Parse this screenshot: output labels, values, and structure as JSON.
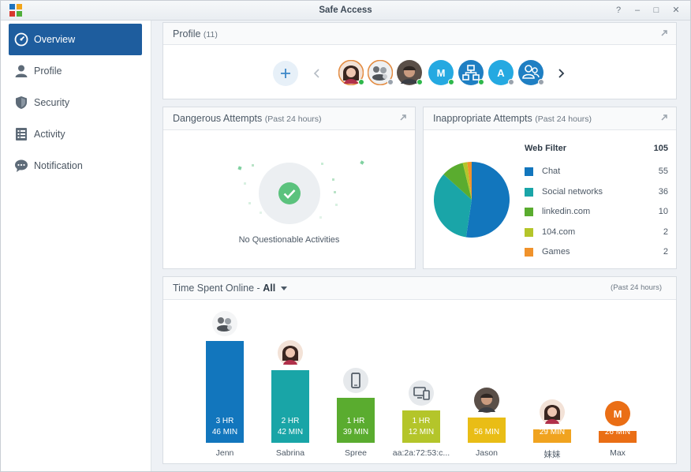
{
  "window": {
    "title": "Safe Access",
    "controls": [
      "?",
      "–",
      "□",
      "✕"
    ]
  },
  "sidebar": {
    "items": [
      {
        "label": "Overview",
        "icon": "dashboard-icon",
        "active": true
      },
      {
        "label": "Profile",
        "icon": "user-icon",
        "active": false
      },
      {
        "label": "Security",
        "icon": "shield-icon",
        "active": false
      },
      {
        "label": "Activity",
        "icon": "list-icon",
        "active": false
      },
      {
        "label": "Notification",
        "icon": "chat-bubble-icon",
        "active": false
      }
    ]
  },
  "profile_panel": {
    "title": "Profile",
    "count": "(11)",
    "avatars": [
      {
        "kind": "photo-woman",
        "status": "#2eb84b"
      },
      {
        "kind": "photo-group",
        "status": "#9aa3ad"
      },
      {
        "kind": "photo-man",
        "status": "#2eb84b"
      },
      {
        "kind": "letter",
        "letter": "M",
        "color": "#25a9e1",
        "status": "#2eb84b"
      },
      {
        "kind": "network",
        "color": "#1f7fc3",
        "status": "#2eb84b"
      },
      {
        "kind": "letter",
        "letter": "A",
        "color": "#25a9e1",
        "status": "#9aa3ad"
      },
      {
        "kind": "users",
        "color": "#1f7fc3",
        "status": "#9aa3ad"
      }
    ]
  },
  "dangerous_panel": {
    "title": "Dangerous Attempts",
    "subtitle": "(Past 24 hours)",
    "empty_message": "No Questionable Activities"
  },
  "inappropriate_panel": {
    "title": "Inappropriate Attempts",
    "subtitle": "(Past 24 hours)",
    "header_label": "Web Filter",
    "header_total": "105"
  },
  "chart_data": [
    {
      "type": "pie",
      "title": "Web Filter",
      "categories": [
        "Chat",
        "Social networks",
        "linkedin.com",
        "104.com",
        "Games"
      ],
      "values": [
        55,
        36,
        10,
        2,
        2
      ],
      "colors": [
        "#1276bd",
        "#1aa5a8",
        "#5aac2f",
        "#b4c52a",
        "#f0922b"
      ],
      "legend": "right"
    },
    {
      "type": "bar",
      "title": "Time Spent Online",
      "categories": [
        "Jenn",
        "Sabrina",
        "Spree",
        "aa:2a:72:53:c...",
        "Jason",
        "妹妹",
        "Max"
      ],
      "values_minutes": [
        226,
        162,
        99,
        72,
        56,
        29,
        26
      ],
      "value_labels": [
        [
          "3 HR",
          "46 MIN"
        ],
        [
          "2 HR",
          "42 MIN"
        ],
        [
          "1 HR",
          "39 MIN"
        ],
        [
          "1 HR",
          "12 MIN"
        ],
        [
          "56 MIN"
        ],
        [
          "29 MIN"
        ],
        [
          "26 MIN"
        ]
      ],
      "colors": [
        "#1276bd",
        "#19a5a7",
        "#5aac2f",
        "#b4c52a",
        "#e9bd16",
        "#f0a31f",
        "#ea6e15"
      ],
      "avatars": [
        "photo-group",
        "photo-woman",
        "phone-icon",
        "devices-icon",
        "photo-man",
        "photo-woman",
        "letter-M"
      ]
    }
  ],
  "time_panel": {
    "title": "Time Spent Online -",
    "filter": "All",
    "period": "(Past 24 hours)",
    "max_avatar_letter": "M"
  }
}
